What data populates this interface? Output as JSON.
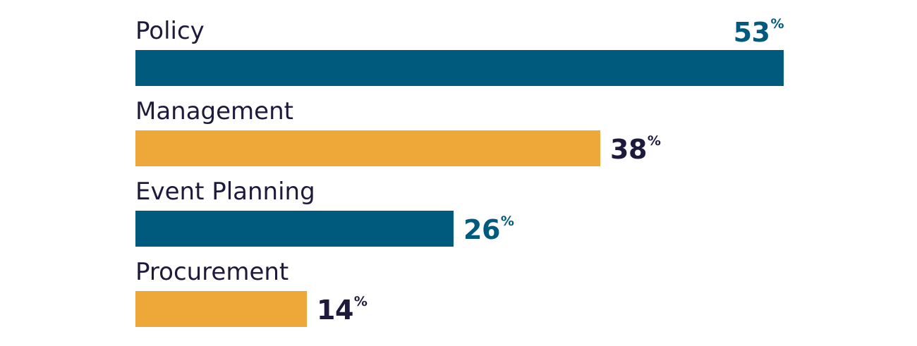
{
  "chart_data": {
    "type": "bar",
    "orientation": "horizontal",
    "categories": [
      "Policy",
      "Management",
      "Event Planning",
      "Procurement"
    ],
    "values": [
      53,
      38,
      26,
      14
    ],
    "value_suffix": "%",
    "xlim": [
      0,
      53
    ],
    "grid": false,
    "legend": "none",
    "colors": {
      "bars": [
        "#005a7d",
        "#eea83a",
        "#005a7d",
        "#eea83a"
      ],
      "value_labels": [
        "#005a7d",
        "#1d1a3c",
        "#005a7d",
        "#1d1a3c"
      ],
      "category_text": "#1d1a3c"
    }
  }
}
